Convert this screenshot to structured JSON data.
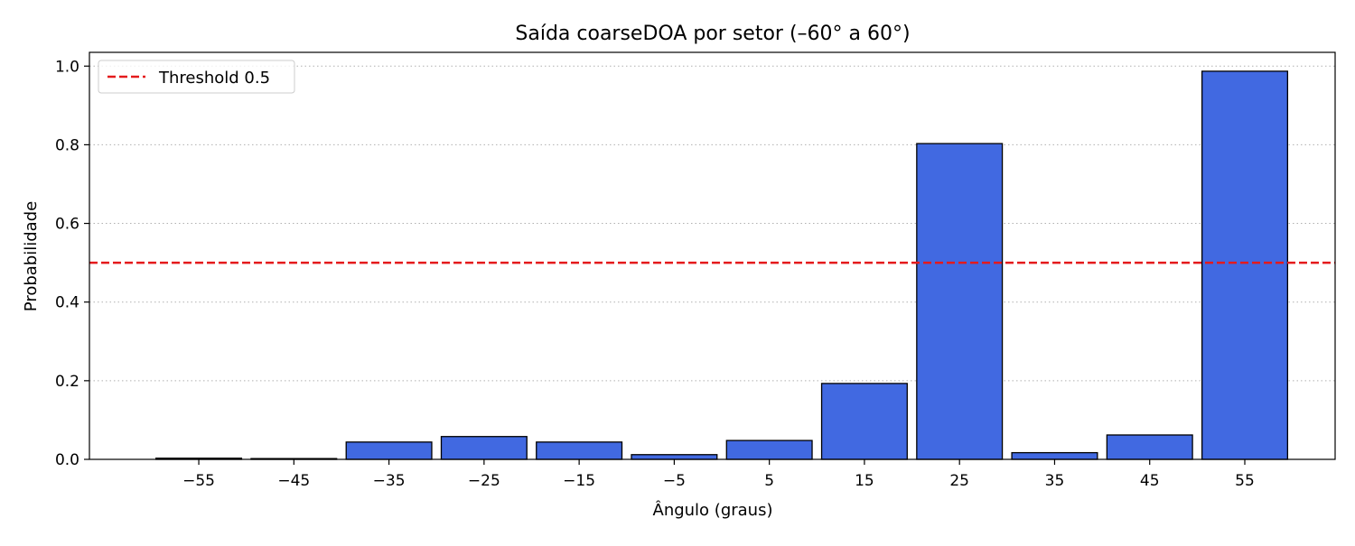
{
  "chart_data": {
    "type": "bar",
    "title": "Saída coarseDOA por setor (–60° a 60°)",
    "xlabel": "Ângulo (graus)",
    "ylabel": "Probabilidade",
    "categories": [
      "−55",
      "−45",
      "−35",
      "−25",
      "−15",
      "−5",
      "5",
      "15",
      "25",
      "35",
      "45",
      "55"
    ],
    "x": [
      -55,
      -45,
      -35,
      -25,
      -15,
      -5,
      5,
      15,
      25,
      35,
      45,
      55
    ],
    "values": [
      0.003,
      0.002,
      0.044,
      0.058,
      0.044,
      0.012,
      0.048,
      0.193,
      0.803,
      0.017,
      0.062,
      0.987
    ],
    "xlim": [
      -66.5,
      64.5
    ],
    "ylim": [
      0,
      1.035
    ],
    "yticks": [
      "0.0",
      "0.2",
      "0.4",
      "0.6",
      "0.8",
      "1.0"
    ],
    "ytick_values": [
      0,
      0.2,
      0.4,
      0.6,
      0.8,
      1.0
    ],
    "grid": "y-dotted",
    "bar_color": "#4169E1",
    "bar_edge_color": "#000000",
    "threshold": {
      "value": 0.5,
      "label": "Threshold 0.5",
      "color": "#E41A1C",
      "style": "dashed"
    },
    "legend": {
      "placement": "top-left"
    }
  }
}
